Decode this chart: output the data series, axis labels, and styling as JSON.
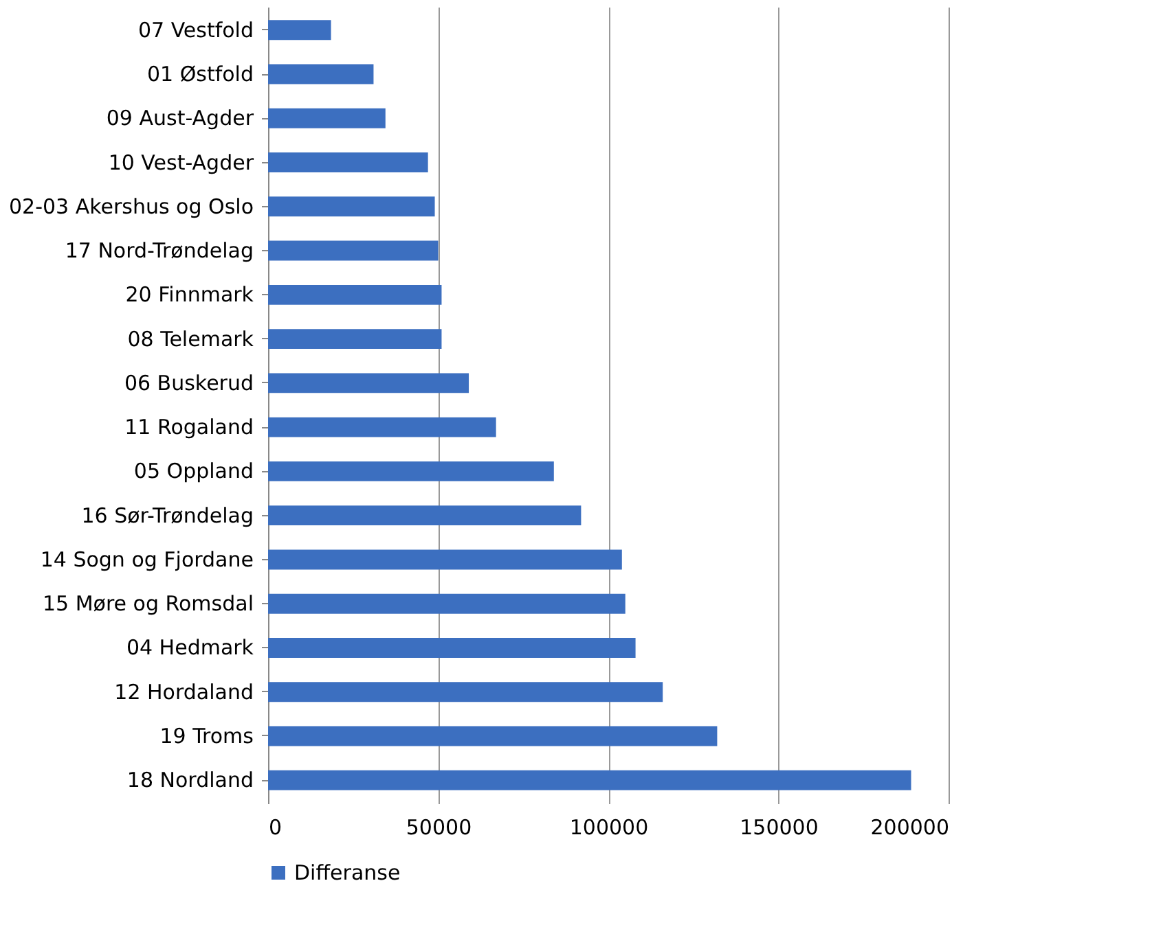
{
  "chart_data": {
    "type": "bar",
    "orientation": "horizontal",
    "categories": [
      "07 Vestfold",
      "01 Østfold",
      "09 Aust-Agder",
      "10 Vest-Agder",
      "02-03 Akershus og Oslo",
      "17 Nord-Trøndelag",
      "20 Finnmark ",
      "08 Telemark",
      "06 Buskerud",
      "11 Rogaland",
      "05 Oppland",
      "16 Sør-Trøndelag",
      "14 Sogn og Fjordane",
      "15 Møre og Romsdal",
      "04 Hedmark",
      "12 Hordaland",
      "19 Troms ",
      "18 Nordland"
    ],
    "series": [
      {
        "name": "Differanse",
        "color": "#3c6fc0",
        "values": [
          18500,
          31000,
          34500,
          47000,
          49000,
          50000,
          51000,
          51000,
          59000,
          67000,
          84000,
          92000,
          104000,
          105000,
          108000,
          116000,
          132000,
          189000
        ]
      }
    ],
    "xlim": [
      0,
      200000
    ],
    "xticks": [
      0,
      50000,
      100000,
      150000,
      200000
    ],
    "grid": "x",
    "legend": "bottom"
  }
}
